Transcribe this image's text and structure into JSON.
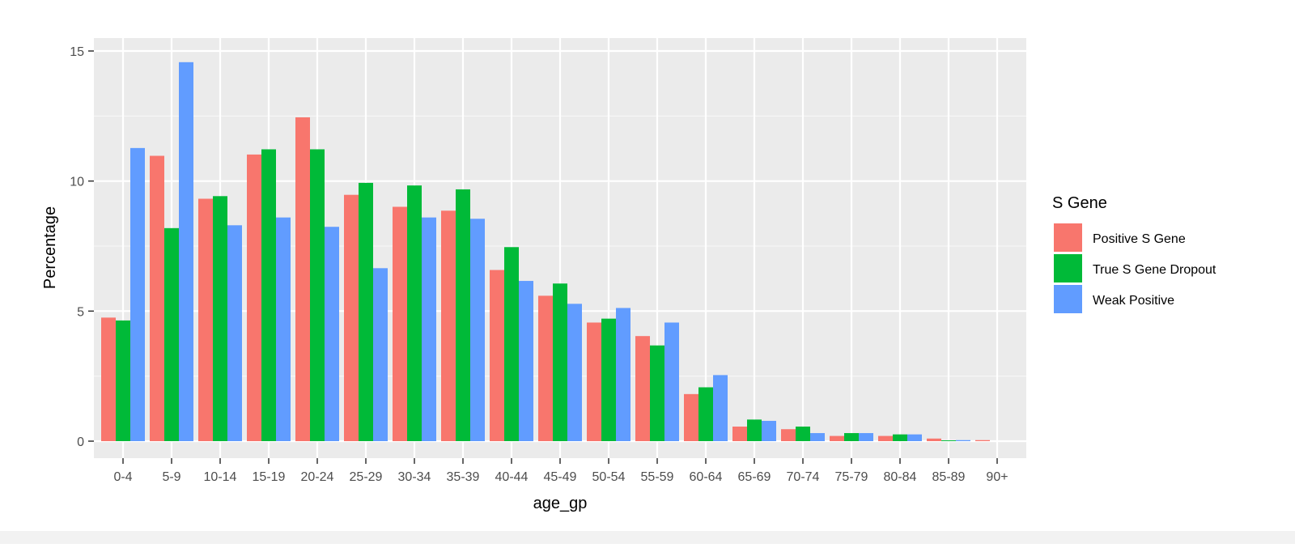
{
  "chart_data": {
    "type": "bar",
    "title": "",
    "xlabel": "age_gp",
    "ylabel": "Percentage",
    "ylim": [
      0,
      15
    ],
    "yticks": [
      0,
      5,
      10,
      15
    ],
    "grid": true,
    "legend": {
      "title": "S Gene",
      "placement": "right"
    },
    "categories": [
      "0-4",
      "5-9",
      "10-14",
      "15-19",
      "20-24",
      "25-29",
      "30-34",
      "35-39",
      "40-44",
      "45-49",
      "50-54",
      "55-59",
      "60-64",
      "65-69",
      "70-74",
      "75-79",
      "80-84",
      "85-89",
      "90+"
    ],
    "series": [
      {
        "name": "Positive S Gene",
        "color": "#F8766D",
        "values": [
          4.75,
          10.97,
          9.32,
          11.02,
          12.45,
          9.47,
          9.01,
          8.86,
          6.58,
          5.59,
          4.56,
          4.04,
          1.81,
          0.56,
          0.46,
          0.2,
          0.2,
          0.1,
          0.04
        ]
      },
      {
        "name": "True S Gene Dropout",
        "color": "#00BA38",
        "values": [
          4.64,
          8.19,
          9.42,
          11.22,
          11.22,
          9.93,
          9.83,
          9.68,
          7.46,
          6.06,
          4.71,
          3.68,
          2.07,
          0.83,
          0.56,
          0.31,
          0.26,
          0.03,
          0
        ]
      },
      {
        "name": "Weak Positive",
        "color": "#619CFF",
        "values": [
          11.27,
          14.57,
          8.3,
          8.6,
          8.24,
          6.65,
          8.6,
          8.55,
          6.16,
          5.28,
          5.12,
          4.56,
          2.54,
          0.78,
          0.31,
          0.31,
          0.26,
          0.04,
          0
        ]
      }
    ]
  }
}
